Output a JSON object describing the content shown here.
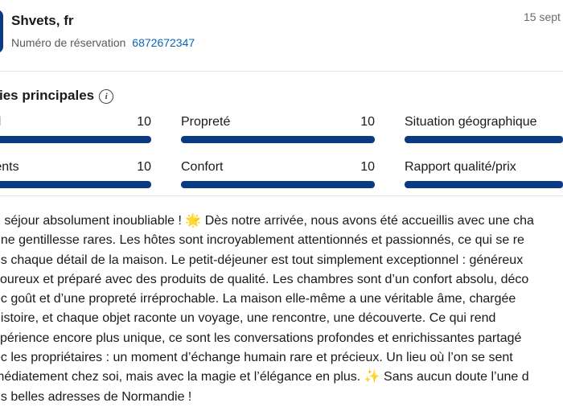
{
  "header": {
    "guest_name": "Shvets, fr",
    "reservation_label": "Numéro de réservation",
    "reservation_number": "6872672347",
    "date": "15 sept"
  },
  "categories": {
    "title": "ories principales",
    "items": [
      {
        "label": "nel",
        "score": "10",
        "value": 1.0
      },
      {
        "label": "Propreté",
        "score": "10",
        "value": 1.0
      },
      {
        "label": "Situation géographique",
        "score": "",
        "value": 1.0
      },
      {
        "label": "ments",
        "score": "10",
        "value": 1.0
      },
      {
        "label": "Confort",
        "score": "10",
        "value": 1.0
      },
      {
        "label": "Rapport qualité/prix",
        "score": "",
        "value": 1.0
      }
    ]
  },
  "review": {
    "lines": [
      "n séjour absolument inoubliable ! 🌟 Dès notre arrivée, nous avons été accueillis avec une cha",
      "une gentillesse rares. Les hôtes sont incroyablement attentionnés et passionnés, ce qui se re",
      "ns chaque détail de la maison. Le petit-déjeuner est tout simplement exceptionnel : généreux",
      "voureux et préparé avec des produits de qualité. Les chambres sont d’un confort absolu, déco",
      "ec goût et d’une propreté irréprochable. La maison elle-même a une véritable âme, chargée",
      "histoire, et chaque objet raconte un voyage, une rencontre, une découverte. Ce qui rend",
      "xpérience encore plus unique, ce sont les conversations profondes et enrichissantes partagé",
      "ec les propriétaires : un moment d’échange humain rare et précieux. Un lieu où l’on se sent",
      "médiatement chez soi, mais avec la magie et l’élégance en plus. ✨ Sans aucun doute l’une d",
      "us belles adresses de Normandie !"
    ]
  },
  "colors": {
    "accent": "#0b3a84",
    "link": "#0a64b7"
  },
  "icons": {
    "info": "info-icon",
    "avatar": "avatar"
  }
}
